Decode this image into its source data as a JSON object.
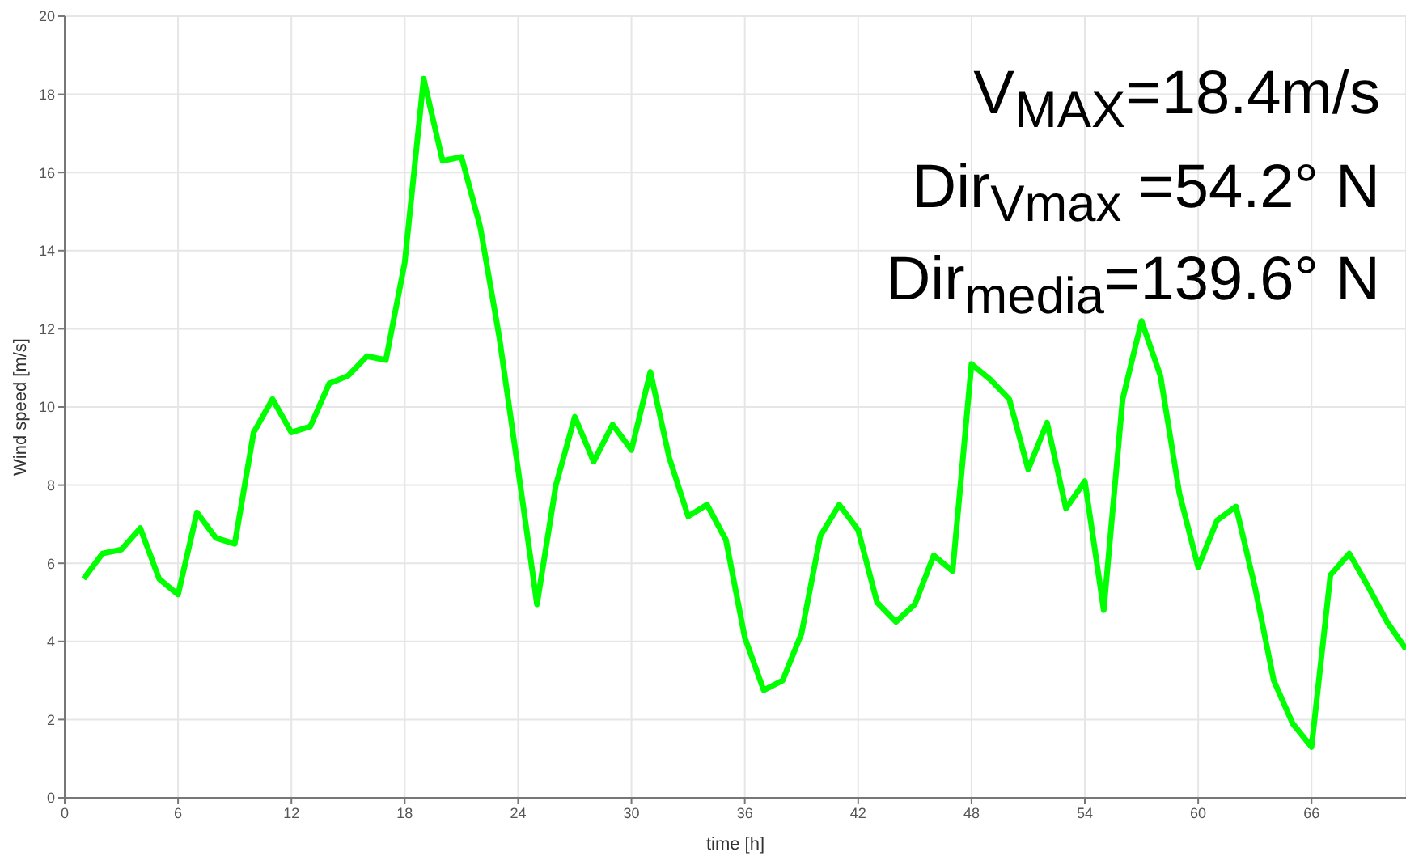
{
  "chart_data": {
    "type": "line",
    "xlabel": "time [h]",
    "ylabel": "Wind speed [m/s]",
    "x": [
      1,
      2,
      3,
      4,
      5,
      6,
      7,
      8,
      9,
      10,
      11,
      12,
      13,
      14,
      15,
      16,
      17,
      18,
      19,
      20,
      21,
      22,
      23,
      24,
      25,
      26,
      27,
      28,
      29,
      30,
      31,
      32,
      33,
      34,
      35,
      36,
      37,
      38,
      39,
      40,
      41,
      42,
      43,
      44,
      45,
      46,
      47,
      48,
      49,
      50,
      51,
      52,
      53,
      54,
      55,
      56,
      57,
      58,
      59,
      60,
      61,
      62,
      63,
      64,
      65,
      66,
      67,
      68,
      69,
      70,
      71
    ],
    "series": [
      {
        "color": "#00ff00",
        "values": [
          5.6,
          6.25,
          6.35,
          6.9,
          5.6,
          5.2,
          7.3,
          6.65,
          6.5,
          9.35,
          10.2,
          9.35,
          9.5,
          10.6,
          10.8,
          11.3,
          11.2,
          13.7,
          18.4,
          16.3,
          16.4,
          14.6,
          11.8,
          8.4,
          4.95,
          8.0,
          9.75,
          8.6,
          9.55,
          8.9,
          10.9,
          8.7,
          7.2,
          7.5,
          6.6,
          4.1,
          2.75,
          3.0,
          4.2,
          6.7,
          7.5,
          6.85,
          5.0,
          4.5,
          4.95,
          6.2,
          5.8,
          11.1,
          10.7,
          10.2,
          8.4,
          9.6,
          7.4,
          8.1,
          4.8,
          10.2,
          12.2,
          10.8,
          7.8,
          5.9,
          7.1,
          7.45,
          5.4,
          3.0,
          1.9,
          1.3,
          5.7,
          6.25,
          5.4,
          4.5,
          3.8
        ]
      }
    ],
    "xlim": [
      0,
      71
    ],
    "xticks": [
      0,
      6,
      12,
      18,
      24,
      30,
      36,
      42,
      48,
      54,
      60,
      66
    ],
    "ylim": [
      0,
      20
    ],
    "yticks": [
      0,
      2,
      4,
      6,
      8,
      10,
      12,
      14,
      16,
      18,
      20
    ],
    "grid": true,
    "marker": "none",
    "line_style": "solid",
    "annotations": [
      "V$_{MAX}$=18.4m/s",
      "Dir$_{Vmax}$ =54.2°  N",
      "Dir$_{media}$=139.6°  N"
    ]
  }
}
